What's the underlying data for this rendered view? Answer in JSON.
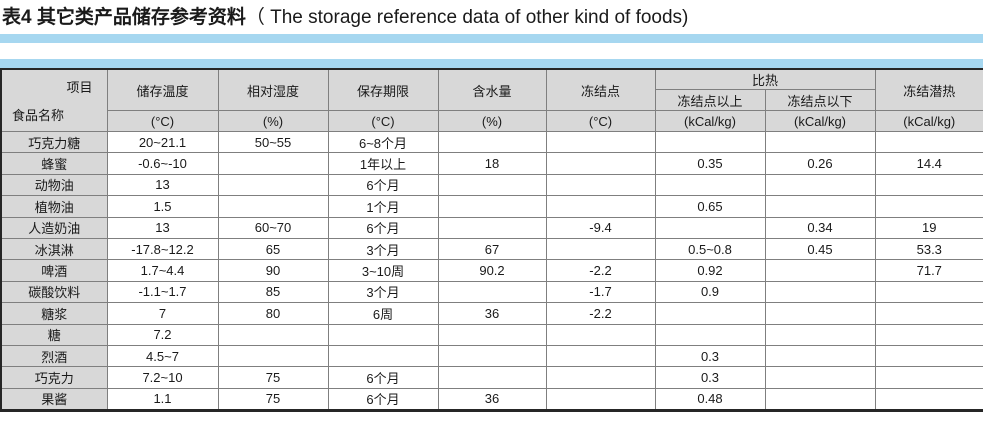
{
  "title": {
    "zh": "表4 其它类产品储存参考资料",
    "en": "（ The storage reference data of other kind of foods)"
  },
  "accent_color": "#a6d7f0",
  "table": {
    "corner": {
      "top_right": "项目",
      "bottom_left": "食品名称"
    },
    "spec_heat_group": "比热",
    "columns": [
      {
        "name": "储存温度",
        "unit": "(°C)"
      },
      {
        "name": "相对湿度",
        "unit": "(%)"
      },
      {
        "name": "保存期限",
        "unit": "(°C)"
      },
      {
        "name": "含水量",
        "unit": "(%)"
      },
      {
        "name": "冻结点",
        "unit": "(°C)"
      },
      {
        "name": "冻结点以上",
        "unit": "(kCal/kg)"
      },
      {
        "name": "冻结点以下",
        "unit": "(kCal/kg)"
      },
      {
        "name": "冻结潜热",
        "unit": "(kCal/kg)"
      }
    ],
    "rows": [
      {
        "name": "巧克力糖",
        "values": [
          "20~21.1",
          "50~55",
          "6~8个月",
          "",
          "",
          "",
          "",
          ""
        ]
      },
      {
        "name": "蜂蜜",
        "values": [
          "-0.6~-10",
          "",
          "1年以上",
          "18",
          "",
          "0.35",
          "0.26",
          "14.4"
        ]
      },
      {
        "name": "动物油",
        "values": [
          "13",
          "",
          "6个月",
          "",
          "",
          "",
          "",
          ""
        ]
      },
      {
        "name": "植物油",
        "values": [
          "1.5",
          "",
          "1个月",
          "",
          "",
          "0.65",
          "",
          ""
        ]
      },
      {
        "name": "人造奶油",
        "values": [
          "13",
          "60~70",
          "6个月",
          "",
          "-9.4",
          "",
          "0.34",
          "19"
        ]
      },
      {
        "name": "冰淇淋",
        "values": [
          "-17.8~12.2",
          "65",
          "3个月",
          "67",
          "",
          "0.5~0.8",
          "0.45",
          "53.3"
        ]
      },
      {
        "name": "啤酒",
        "values": [
          "1.7~4.4",
          "90",
          "3~10周",
          "90.2",
          "-2.2",
          "0.92",
          "",
          "71.7"
        ]
      },
      {
        "name": "碳酸饮料",
        "values": [
          "-1.1~1.7",
          "85",
          "3个月",
          "",
          "-1.7",
          "0.9",
          "",
          ""
        ]
      },
      {
        "name": "糖浆",
        "values": [
          "7",
          "80",
          "6周",
          "36",
          "-2.2",
          "",
          "",
          ""
        ]
      },
      {
        "name": "糖",
        "values": [
          "7.2",
          "",
          "",
          "",
          "",
          "",
          "",
          ""
        ]
      },
      {
        "name": "烈酒",
        "values": [
          "4.5~7",
          "",
          "",
          "",
          "",
          "0.3",
          "",
          ""
        ]
      },
      {
        "name": "巧克力",
        "values": [
          "7.2~10",
          "75",
          "6个月",
          "",
          "",
          "0.3",
          "",
          ""
        ]
      },
      {
        "name": "果酱",
        "values": [
          "1.1",
          "75",
          "6个月",
          "36",
          "",
          "0.48",
          "",
          ""
        ]
      }
    ]
  }
}
